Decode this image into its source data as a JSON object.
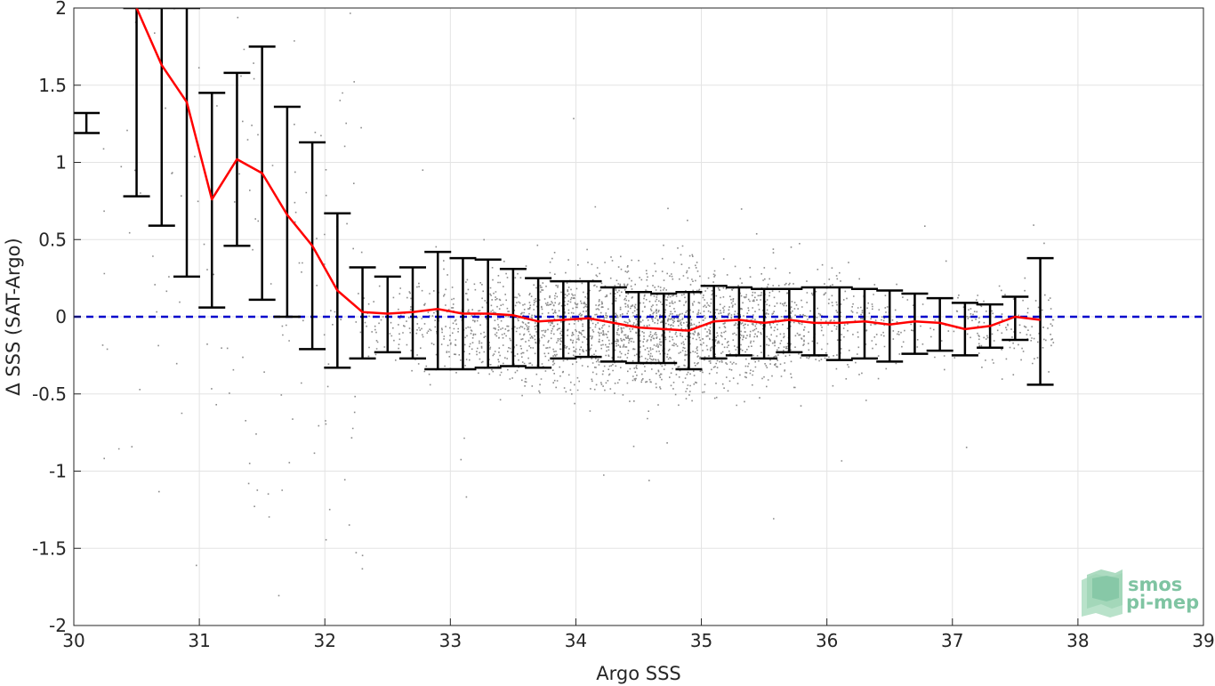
{
  "chart_data": {
    "type": "scatter",
    "title": "",
    "xlabel": "Argo SSS",
    "ylabel": "Δ SSS (SAT-Argo)",
    "xlim": [
      30,
      39
    ],
    "ylim": [
      -2,
      2
    ],
    "xticks": [
      30,
      31,
      32,
      33,
      34,
      35,
      36,
      37,
      38,
      39
    ],
    "yticks": [
      -2,
      -1.5,
      -1,
      -0.5,
      0,
      0.5,
      1,
      1.5,
      2
    ],
    "xtick_labels": [
      "30",
      "31",
      "32",
      "33",
      "34",
      "35",
      "36",
      "37",
      "38",
      "39"
    ],
    "ytick_labels": [
      "-2",
      "-1.5",
      "-1",
      "-0.5",
      "0",
      "0.5",
      "1",
      "1.5",
      "2"
    ],
    "grid": true,
    "colors": {
      "scatter": "#8c8c8c",
      "median_line": "#ff0000",
      "error_bars": "#000000",
      "zero_line": "#0000cc",
      "axes": "#262626",
      "grid": "#e3e3e3"
    },
    "scatter_density": {
      "description_x_range": [
        30,
        38
      ],
      "peak_x": 34.6
    },
    "zero_reference": {
      "y": 0,
      "style": "dashed"
    },
    "binned_stats": {
      "x": [
        30.1,
        30.5,
        30.7,
        30.9,
        31.1,
        31.3,
        31.5,
        31.7,
        31.9,
        32.1,
        32.3,
        32.5,
        32.7,
        32.9,
        33.1,
        33.3,
        33.5,
        33.7,
        33.9,
        34.1,
        34.3,
        34.5,
        34.7,
        34.9,
        35.1,
        35.3,
        35.5,
        35.7,
        35.9,
        36.1,
        36.3,
        36.5,
        36.7,
        36.9,
        37.1,
        37.3,
        37.5,
        37.7
      ],
      "median": [
        null,
        2.0,
        1.63,
        1.39,
        0.76,
        1.02,
        0.93,
        0.66,
        0.46,
        0.17,
        0.03,
        0.02,
        0.03,
        0.05,
        0.02,
        0.02,
        0.01,
        -0.03,
        -0.02,
        -0.01,
        -0.04,
        -0.07,
        -0.08,
        -0.09,
        -0.03,
        -0.02,
        -0.04,
        -0.02,
        -0.04,
        -0.04,
        -0.03,
        -0.05,
        -0.03,
        -0.04,
        -0.08,
        -0.06,
        0.0,
        -0.02
      ],
      "lower": [
        1.19,
        0.78,
        0.59,
        0.26,
        0.06,
        0.46,
        0.11,
        0.0,
        -0.21,
        -0.33,
        -0.27,
        -0.23,
        -0.27,
        -0.34,
        -0.34,
        -0.33,
        -0.32,
        -0.33,
        -0.27,
        -0.26,
        -0.29,
        -0.3,
        -0.3,
        -0.34,
        -0.27,
        -0.25,
        -0.27,
        -0.23,
        -0.25,
        -0.28,
        -0.27,
        -0.29,
        -0.24,
        -0.22,
        -0.25,
        -0.2,
        -0.15,
        -0.44
      ],
      "upper": [
        1.32,
        2.0,
        2.0,
        2.0,
        1.45,
        1.58,
        1.75,
        1.36,
        1.13,
        0.67,
        0.32,
        0.26,
        0.32,
        0.42,
        0.38,
        0.37,
        0.31,
        0.25,
        0.23,
        0.23,
        0.19,
        0.16,
        0.15,
        0.16,
        0.2,
        0.19,
        0.18,
        0.18,
        0.19,
        0.19,
        0.18,
        0.17,
        0.15,
        0.12,
        0.09,
        0.08,
        0.13,
        0.38
      ]
    }
  },
  "logo": {
    "line1": "smos",
    "line2": "pi-mep",
    "color": "#7fc4a2"
  }
}
